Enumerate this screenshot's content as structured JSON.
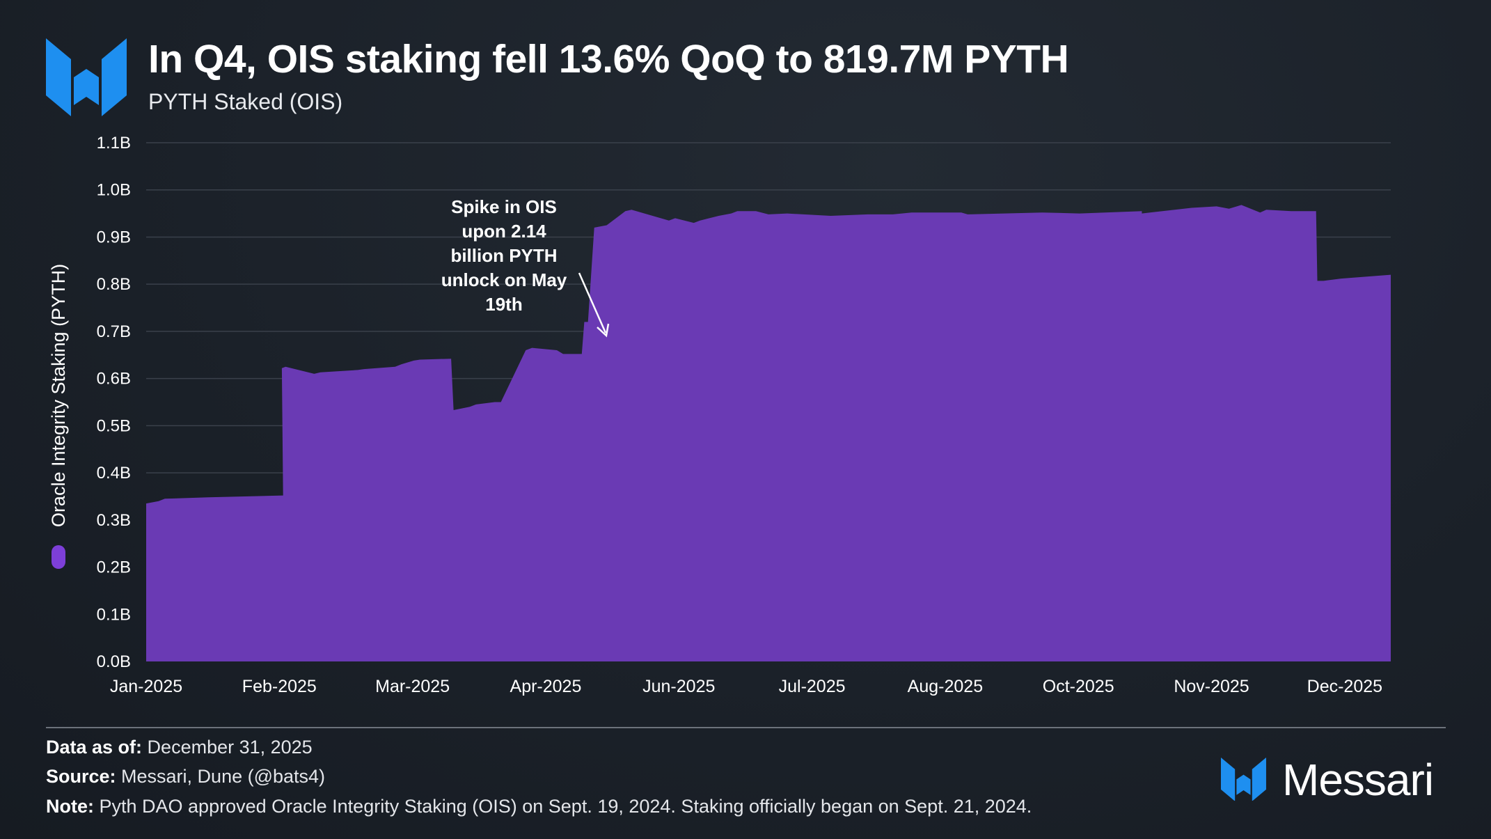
{
  "title": "In Q4, OIS staking fell 13.6% QoQ to 819.7M PYTH",
  "subtitle": "PYTH Staked (OIS)",
  "annotation": [
    "Spike in OIS",
    "upon 2.14",
    "billion PYTH",
    "unlock on May",
    "19th"
  ],
  "legend_label": "Oracle Integrity Staking (PYTH)",
  "footer": {
    "data_label": "Data as of:",
    "data_value": " December 31, 2025",
    "source_label": "Source:",
    "source_value": " Messari, Dune (@bats4)",
    "note_label": "Note:",
    "note_value": " Pyth DAO approved Oracle Integrity Staking (OIS) on Sept. 19, 2024. Staking officially began on Sept. 21, 2024."
  },
  "brand": "Messari",
  "colors": {
    "area": "#6a3ab4",
    "legend": "#7d3fd8",
    "brand_blue": "#1e8ff0",
    "grid": "#3a414b"
  },
  "chart_data": {
    "type": "area",
    "title": "In Q4, OIS staking fell 13.6% QoQ to 819.7M PYTH",
    "subtitle": "PYTH Staked (OIS)",
    "ylabel": "Oracle Integrity Staking (PYTH)",
    "xlabel": "",
    "unit": "B PYTH",
    "ylim": [
      0,
      1.1
    ],
    "yticks": [
      "0.0B",
      "0.1B",
      "0.2B",
      "0.3B",
      "0.4B",
      "0.5B",
      "0.6B",
      "0.7B",
      "0.8B",
      "0.9B",
      "1.0B",
      "1.1B"
    ],
    "xtick_labels": [
      "Jan-2025",
      "Feb-2025",
      "Mar-2025",
      "Apr-2025",
      "Jun-2025",
      "Jul-2025",
      "Aug-2025",
      "Oct-2025",
      "Nov-2025",
      "Dec-2025"
    ],
    "xlim": [
      0,
      1
    ],
    "xticks": [
      0.0,
      0.107,
      0.214,
      0.321,
      0.428,
      0.535,
      0.642,
      0.749,
      0.856,
      0.963
    ],
    "series": [
      {
        "name": "Oracle Integrity Staking (PYTH)",
        "x": [
          0.0,
          0.01,
          0.015,
          0.05,
          0.11,
          0.109,
          0.112,
          0.135,
          0.14,
          0.17,
          0.175,
          0.2,
          0.205,
          0.215,
          0.22,
          0.245,
          0.247,
          0.26,
          0.265,
          0.28,
          0.285,
          0.305,
          0.31,
          0.33,
          0.335,
          0.35,
          0.352,
          0.355,
          0.36,
          0.37,
          0.385,
          0.39,
          0.42,
          0.425,
          0.44,
          0.445,
          0.46,
          0.47,
          0.475,
          0.49,
          0.5,
          0.515,
          0.55,
          0.58,
          0.6,
          0.615,
          0.655,
          0.66,
          0.72,
          0.75,
          0.8,
          0.8,
          0.84,
          0.86,
          0.87,
          0.88,
          0.895,
          0.9,
          0.92,
          0.935,
          0.94,
          0.941,
          0.946,
          0.96,
          1.0
        ],
        "values": [
          0.335,
          0.34,
          0.345,
          0.348,
          0.352,
          0.622,
          0.625,
          0.61,
          0.613,
          0.618,
          0.62,
          0.625,
          0.63,
          0.638,
          0.64,
          0.642,
          0.533,
          0.54,
          0.545,
          0.55,
          0.55,
          0.66,
          0.665,
          0.66,
          0.652,
          0.652,
          0.72,
          0.72,
          0.92,
          0.925,
          0.955,
          0.958,
          0.935,
          0.94,
          0.93,
          0.935,
          0.945,
          0.95,
          0.955,
          0.955,
          0.948,
          0.95,
          0.945,
          0.948,
          0.948,
          0.952,
          0.952,
          0.948,
          0.952,
          0.95,
          0.955,
          0.95,
          0.962,
          0.965,
          0.96,
          0.968,
          0.952,
          0.958,
          0.955,
          0.955,
          0.955,
          0.807,
          0.807,
          0.812,
          0.82
        ]
      }
    ],
    "annotation_text": "Spike in OIS upon 2.14 billion PYTH unlock on May 19th",
    "grid": true,
    "legend": "left-vertical"
  }
}
